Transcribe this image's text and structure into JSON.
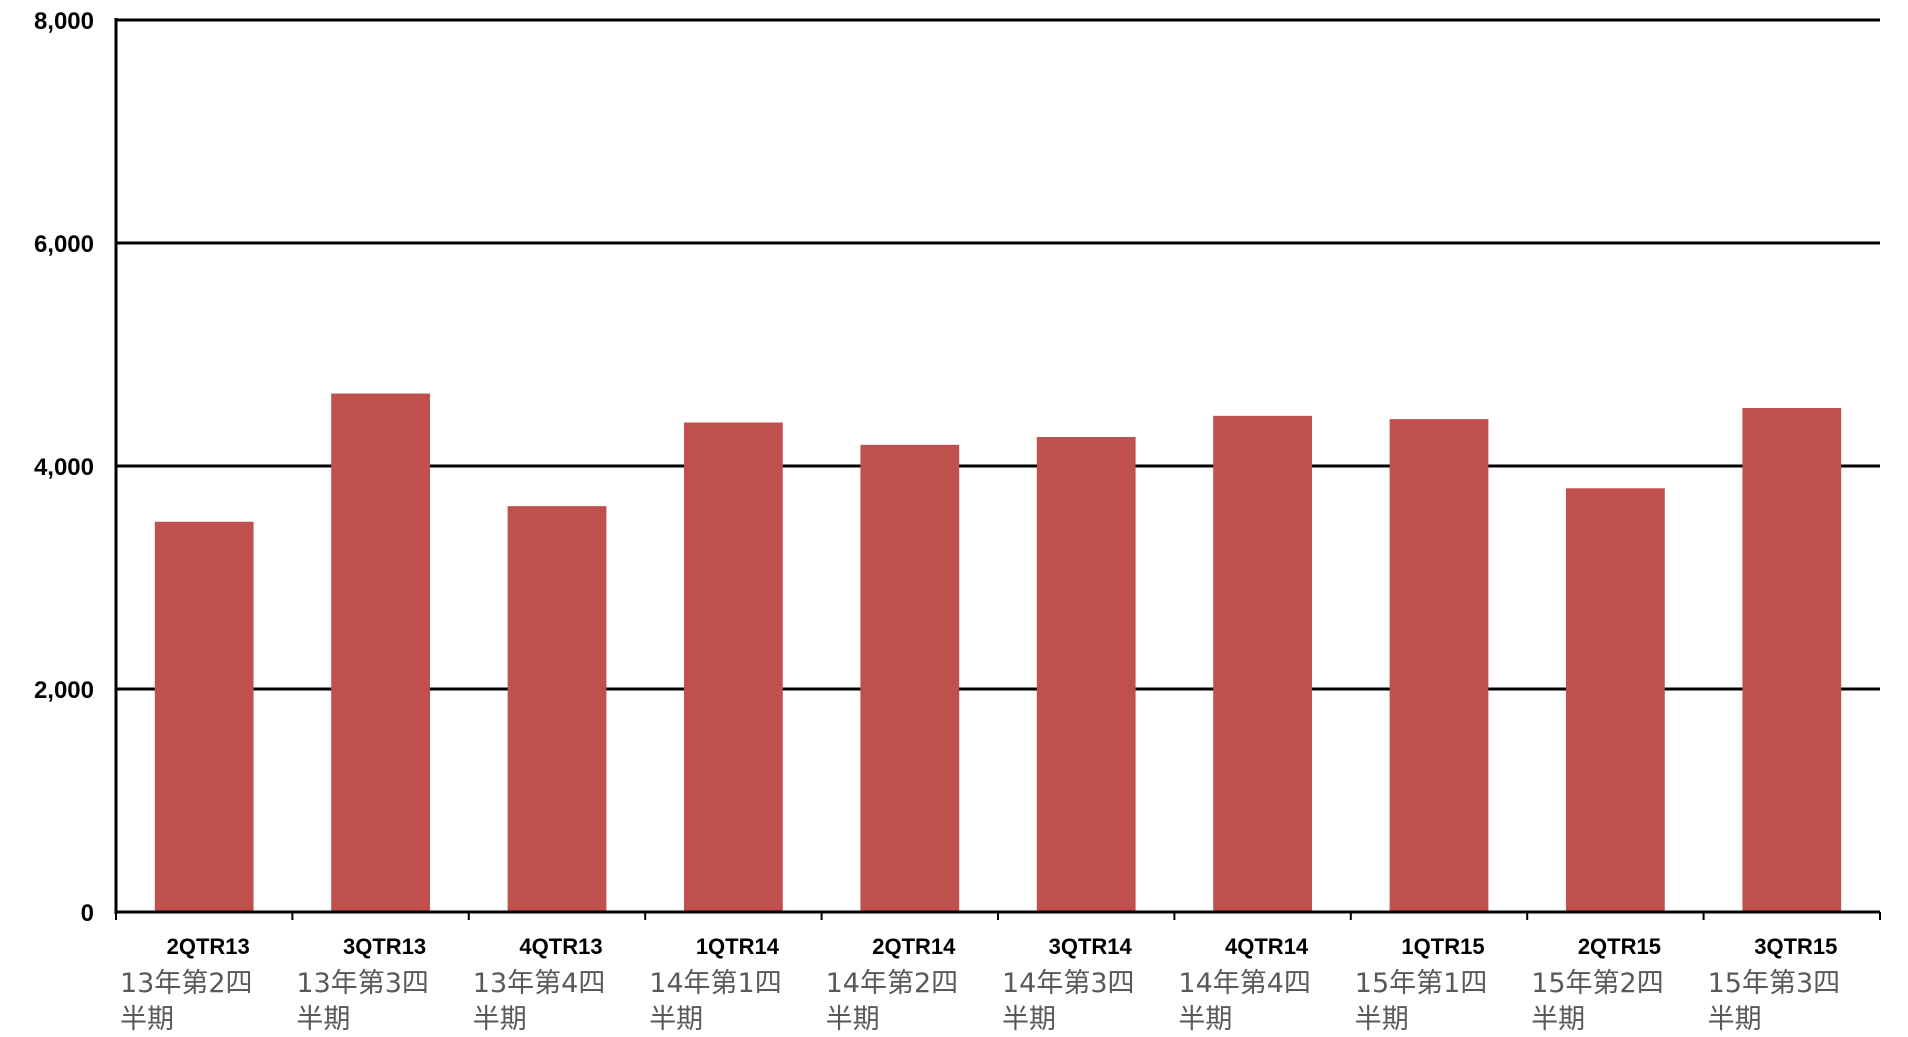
{
  "chart_data": {
    "type": "bar",
    "title": "",
    "xlabel": "",
    "ylabel": "",
    "ylim": [
      0,
      8000
    ],
    "yticks": [
      0,
      2000,
      4000,
      6000,
      8000
    ],
    "ytick_labels": [
      "0",
      "2,000",
      "4,000",
      "6,000",
      "8,000"
    ],
    "grid": true,
    "legend": "none",
    "categories": [
      "2QTR13",
      "3QTR13",
      "4QTR13",
      "1QTR14",
      "2QTR14",
      "3QTR14",
      "4QTR14",
      "1QTR15",
      "2QTR15",
      "3QTR15"
    ],
    "category_sublabels": [
      [
        "13年第2四",
        "半期"
      ],
      [
        "13年第3四",
        "半期"
      ],
      [
        "13年第4四",
        "半期"
      ],
      [
        "14年第1四",
        "半期"
      ],
      [
        "14年第2四",
        "半期"
      ],
      [
        "14年第3四",
        "半期"
      ],
      [
        "14年第4四",
        "半期"
      ],
      [
        "15年第1四",
        "半期"
      ],
      [
        "15年第2四",
        "半期"
      ],
      [
        "15年第3四",
        "半期"
      ]
    ],
    "values": [
      3500,
      4650,
      3640,
      4390,
      4190,
      4260,
      4450,
      4420,
      3800,
      4520
    ],
    "bar_color": "#c0504d"
  }
}
